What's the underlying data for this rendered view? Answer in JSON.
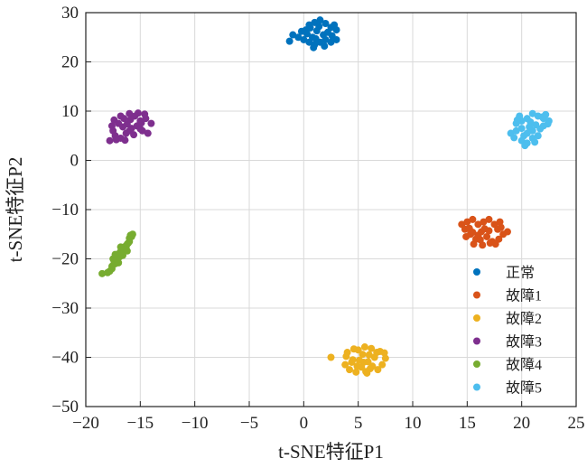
{
  "chart_data": {
    "type": "scatter",
    "title": "",
    "xlabel": "t-SNE特征P1",
    "ylabel": "t-SNE特征P2",
    "xlim": [
      -20,
      25
    ],
    "ylim": [
      -50,
      30
    ],
    "xticks": [
      -20,
      -15,
      -10,
      -5,
      0,
      5,
      10,
      15,
      20,
      25
    ],
    "yticks": [
      30,
      20,
      10,
      0,
      -10,
      -20,
      -30,
      -40,
      -50
    ],
    "xtick_labels": [
      "−20",
      "−15",
      "−10",
      "−5",
      "0",
      "5",
      "10",
      "15",
      "20",
      "25"
    ],
    "ytick_labels": [
      "30",
      "20",
      "10",
      "0",
      "−10",
      "−20",
      "−30",
      "−40",
      "−50"
    ],
    "grid": true,
    "legend_position": "lower-right",
    "series": [
      {
        "name": "正常",
        "color": "#0072BD",
        "points": [
          [
            0.2,
            26.5
          ],
          [
            0.5,
            27.5
          ],
          [
            1.0,
            28.0
          ],
          [
            1.5,
            28.5
          ],
          [
            2.0,
            27.8
          ],
          [
            2.5,
            27.0
          ],
          [
            3.0,
            26.5
          ],
          [
            -1.0,
            25.5
          ],
          [
            -0.5,
            25.0
          ],
          [
            0.0,
            24.5
          ],
          [
            0.5,
            24.0
          ],
          [
            1.0,
            23.5
          ],
          [
            1.5,
            24.0
          ],
          [
            2.0,
            24.5
          ],
          [
            2.5,
            24.0
          ],
          [
            3.0,
            24.5
          ],
          [
            -1.3,
            24.2
          ],
          [
            0.3,
            25.7
          ],
          [
            1.2,
            26.3
          ],
          [
            1.8,
            25.5
          ],
          [
            2.2,
            26.0
          ],
          [
            0.8,
            25.0
          ],
          [
            1.4,
            27.2
          ],
          [
            2.6,
            25.3
          ],
          [
            -0.2,
            26.2
          ],
          [
            0.9,
            22.9
          ],
          [
            1.9,
            23.2
          ],
          [
            0.6,
            26.9
          ],
          [
            2.8,
            27.5
          ],
          [
            1.1,
            24.7
          ]
        ]
      },
      {
        "name": "故障1",
        "color": "#D95319",
        "points": [
          [
            14.5,
            -13.0
          ],
          [
            15.0,
            -12.5
          ],
          [
            15.5,
            -12.0
          ],
          [
            16.0,
            -13.0
          ],
          [
            16.5,
            -12.5
          ],
          [
            17.0,
            -12.0
          ],
          [
            17.5,
            -13.0
          ],
          [
            18.0,
            -12.5
          ],
          [
            14.8,
            -14.0
          ],
          [
            15.3,
            -15.0
          ],
          [
            15.8,
            -16.0
          ],
          [
            16.3,
            -14.5
          ],
          [
            16.8,
            -15.5
          ],
          [
            17.3,
            -16.5
          ],
          [
            17.8,
            -14.0
          ],
          [
            18.3,
            -15.0
          ],
          [
            18.7,
            -14.5
          ],
          [
            15.6,
            -17.0
          ],
          [
            16.4,
            -17.2
          ],
          [
            17.1,
            -16.8
          ],
          [
            17.9,
            -16.0
          ],
          [
            16.0,
            -15.2
          ],
          [
            17.0,
            -14.3
          ],
          [
            15.2,
            -13.8
          ],
          [
            18.1,
            -13.6
          ],
          [
            16.6,
            -13.9
          ],
          [
            14.9,
            -15.5
          ],
          [
            17.6,
            -17.0
          ],
          [
            16.2,
            -16.1
          ],
          [
            15.5,
            -14.6
          ]
        ]
      },
      {
        "name": "故障2",
        "color": "#EDB120",
        "points": [
          [
            2.5,
            -40.0
          ],
          [
            3.8,
            -41.5
          ],
          [
            4.0,
            -39.0
          ],
          [
            4.5,
            -40.5
          ],
          [
            5.0,
            -38.5
          ],
          [
            5.5,
            -41.0
          ],
          [
            6.0,
            -39.5
          ],
          [
            6.5,
            -40.0
          ],
          [
            7.0,
            -38.8
          ],
          [
            7.5,
            -40.2
          ],
          [
            4.2,
            -42.5
          ],
          [
            4.8,
            -43.0
          ],
          [
            5.3,
            -42.0
          ],
          [
            5.8,
            -43.2
          ],
          [
            6.3,
            -41.8
          ],
          [
            6.8,
            -42.5
          ],
          [
            7.2,
            -41.5
          ],
          [
            4.6,
            -38.3
          ],
          [
            5.6,
            -37.9
          ],
          [
            6.2,
            -38.2
          ],
          [
            4.4,
            -41.0
          ],
          [
            5.1,
            -40.6
          ],
          [
            5.9,
            -40.9
          ],
          [
            6.7,
            -39.0
          ],
          [
            5.4,
            -39.4
          ],
          [
            4.9,
            -41.8
          ],
          [
            6.1,
            -42.3
          ],
          [
            7.4,
            -39.1
          ],
          [
            3.9,
            -39.8
          ],
          [
            5.7,
            -42.9
          ]
        ]
      },
      {
        "name": "故障3",
        "color": "#7E2F8E",
        "points": [
          [
            -17.5,
            6.0
          ],
          [
            -17.0,
            7.5
          ],
          [
            -16.5,
            8.5
          ],
          [
            -16.0,
            9.5
          ],
          [
            -15.5,
            9.0
          ],
          [
            -15.0,
            8.0
          ],
          [
            -14.5,
            8.5
          ],
          [
            -14.0,
            7.5
          ],
          [
            -17.8,
            4.0
          ],
          [
            -17.3,
            5.0
          ],
          [
            -16.8,
            4.5
          ],
          [
            -16.3,
            5.5
          ],
          [
            -15.8,
            6.5
          ],
          [
            -15.3,
            7.0
          ],
          [
            -14.8,
            6.0
          ],
          [
            -14.3,
            5.5
          ],
          [
            -16.6,
            6.8
          ],
          [
            -15.6,
            5.2
          ],
          [
            -16.2,
            7.4
          ],
          [
            -17.6,
            7.0
          ],
          [
            -14.6,
            9.4
          ],
          [
            -15.2,
            9.6
          ],
          [
            -16.8,
            9.0
          ],
          [
            -17.2,
            4.2
          ],
          [
            -15.0,
            6.4
          ],
          [
            -16.0,
            6.0
          ],
          [
            -14.9,
            7.6
          ],
          [
            -17.4,
            8.2
          ],
          [
            -15.9,
            8.3
          ],
          [
            -16.4,
            4.1
          ]
        ]
      },
      {
        "name": "故障4",
        "color": "#77AC30",
        "points": [
          [
            -18.5,
            -23.0
          ],
          [
            -18.0,
            -22.8
          ],
          [
            -17.6,
            -22.0
          ],
          [
            -17.3,
            -21.0
          ],
          [
            -17.5,
            -20.0
          ],
          [
            -17.2,
            -19.5
          ],
          [
            -17.0,
            -19.0
          ],
          [
            -16.8,
            -18.5
          ],
          [
            -16.6,
            -18.0
          ],
          [
            -16.4,
            -17.5
          ],
          [
            -16.2,
            -17.0
          ],
          [
            -16.0,
            -16.5
          ],
          [
            -15.8,
            -15.5
          ],
          [
            -15.7,
            -15.0
          ],
          [
            -17.4,
            -20.5
          ],
          [
            -17.1,
            -20.2
          ],
          [
            -16.9,
            -19.6
          ],
          [
            -16.7,
            -18.9
          ],
          [
            -16.5,
            -18.2
          ],
          [
            -16.3,
            -17.7
          ],
          [
            -16.1,
            -16.8
          ],
          [
            -17.6,
            -21.5
          ],
          [
            -16.0,
            -15.8
          ],
          [
            -15.9,
            -15.2
          ],
          [
            -17.0,
            -20.8
          ],
          [
            -16.6,
            -19.3
          ],
          [
            -16.8,
            -17.6
          ],
          [
            -17.3,
            -19.1
          ],
          [
            -16.2,
            -18.4
          ],
          [
            -17.8,
            -22.5
          ]
        ]
      },
      {
        "name": "故障5",
        "color": "#4DBEEE",
        "points": [
          [
            19.5,
            7.5
          ],
          [
            20.0,
            8.0
          ],
          [
            20.5,
            8.5
          ],
          [
            21.0,
            9.5
          ],
          [
            21.5,
            9.0
          ],
          [
            22.0,
            8.5
          ],
          [
            22.5,
            8.0
          ],
          [
            19.0,
            5.5
          ],
          [
            19.5,
            6.0
          ],
          [
            20.0,
            6.5
          ],
          [
            20.5,
            5.5
          ],
          [
            21.0,
            6.0
          ],
          [
            21.5,
            5.0
          ],
          [
            22.0,
            7.0
          ],
          [
            20.0,
            4.0
          ],
          [
            20.5,
            3.5
          ],
          [
            21.0,
            4.5
          ],
          [
            20.3,
            3.0
          ],
          [
            21.3,
            7.2
          ],
          [
            20.8,
            7.8
          ],
          [
            19.8,
            9.0
          ],
          [
            22.2,
            9.3
          ],
          [
            21.7,
            6.4
          ],
          [
            19.3,
            4.6
          ],
          [
            21.2,
            3.7
          ],
          [
            20.7,
            6.8
          ],
          [
            22.4,
            7.4
          ],
          [
            19.6,
            8.2
          ],
          [
            21.9,
            8.8
          ],
          [
            20.2,
            5.0
          ]
        ]
      }
    ]
  }
}
